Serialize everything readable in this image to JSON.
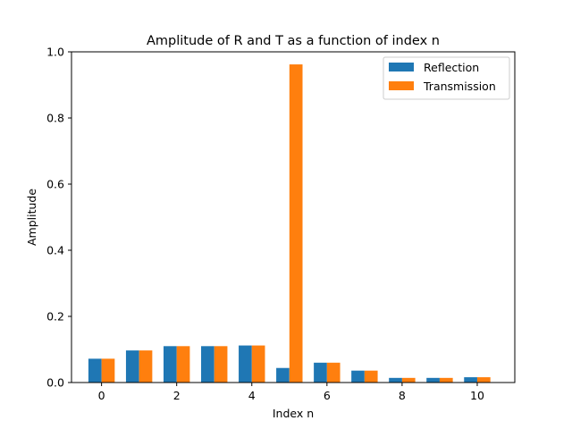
{
  "chart_data": {
    "type": "bar",
    "title": "Amplitude of R and T as a function of index n",
    "xlabel": "Index n",
    "ylabel": "Amplitude",
    "x": [
      0,
      1,
      2,
      3,
      4,
      5,
      6,
      7,
      8,
      9,
      10
    ],
    "xlim": [
      -0.8,
      11.0
    ],
    "ylim": [
      0,
      1.0
    ],
    "xticks": [
      0,
      2,
      4,
      6,
      8,
      10
    ],
    "yticks": [
      0.0,
      0.2,
      0.4,
      0.6,
      0.8,
      1.0
    ],
    "xtick_labels": [
      "0",
      "2",
      "4",
      "6",
      "8",
      "10"
    ],
    "ytick_labels": [
      "0.0",
      "0.2",
      "0.4",
      "0.6",
      "0.8",
      "1.0"
    ],
    "grid": false,
    "legend_position": "top-right",
    "bar_width": 0.35,
    "series": [
      {
        "name": "Reflection",
        "color": "#1f77b4",
        "values": [
          0.072,
          0.097,
          0.11,
          0.11,
          0.112,
          0.044,
          0.06,
          0.036,
          0.014,
          0.014,
          0.016
        ]
      },
      {
        "name": "Transmission",
        "color": "#ff7f0e",
        "values": [
          0.072,
          0.097,
          0.11,
          0.11,
          0.112,
          0.962,
          0.06,
          0.036,
          0.014,
          0.014,
          0.016
        ]
      }
    ]
  }
}
